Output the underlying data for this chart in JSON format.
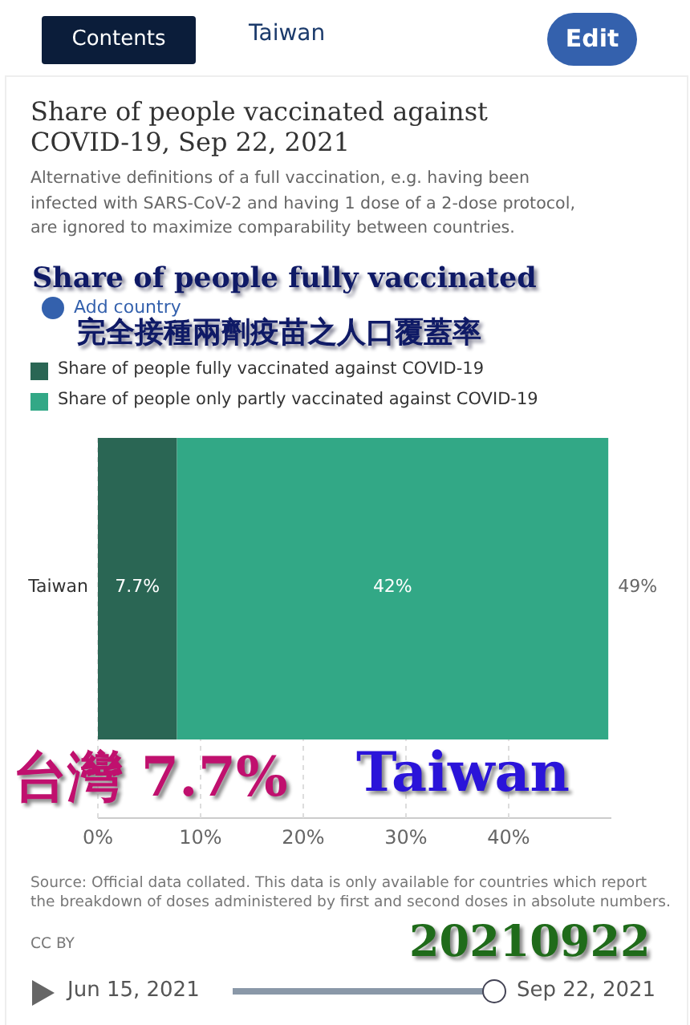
{
  "chart_data": {
    "type": "bar",
    "orientation": "horizontal",
    "stacked": true,
    "title": "Share of people vaccinated against COVID-19, Sep 22, 2021",
    "subtitle": "Alternative definitions of a full vaccination, e.g. having been infected with SARS-CoV-2 and having 1 dose of a 2-dose protocol, are ignored to maximize comparability between countries.",
    "categories": [
      "Taiwan"
    ],
    "series": [
      {
        "name": "Share of people fully vaccinated against COVID-19",
        "color": "#2a6654",
        "values": [
          7.7
        ],
        "value_labels": [
          "7.7%"
        ]
      },
      {
        "name": "Share of people only partly vaccinated against COVID-19",
        "color": "#32a886",
        "values": [
          42
        ],
        "value_labels": [
          "42%"
        ]
      }
    ],
    "totals": [
      "49%"
    ],
    "xlim": [
      0,
      50
    ],
    "xticks": [
      {
        "value": 0,
        "label": "0%"
      },
      {
        "value": 10,
        "label": "10%"
      },
      {
        "value": 20,
        "label": "20%"
      },
      {
        "value": 30,
        "label": "30%"
      },
      {
        "value": 40,
        "label": "40%"
      }
    ],
    "grid": "x",
    "legend": "top left",
    "annotations": [
      "Contents",
      "Taiwan",
      "Edit",
      "Add country",
      "Share of people fully vaccinated",
      "完全接種兩劑疫苗之人口覆蓋率",
      "台灣 7.7%",
      "Taiwan",
      "Source: Official data collated. This data is only available for countries which report the breakdown of doses administered by first and second doses in absolute numbers.",
      "CC BY",
      "Jun 15, 2021",
      "Sep 22, 2021",
      "20210922"
    ]
  }
}
